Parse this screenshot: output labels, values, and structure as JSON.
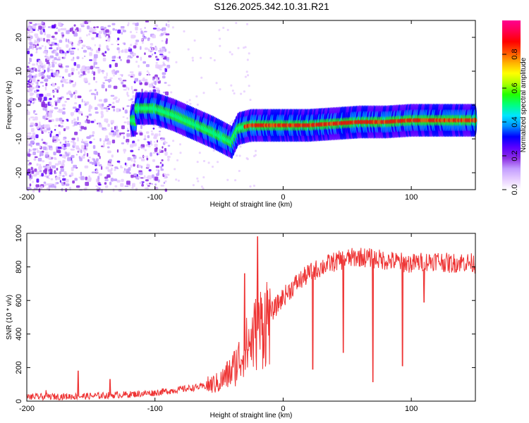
{
  "title": "S126.2025.342.10.31.R21",
  "chart_data": [
    {
      "type": "heatmap",
      "name": "spectrogram",
      "xlabel": "Height of straight line (km)",
      "ylabel": "Frequency (Hz)",
      "xlim": [
        -200,
        150
      ],
      "ylim": [
        -25,
        25
      ],
      "xticks": [
        -200,
        -100,
        0,
        100
      ],
      "yticks": [
        -20,
        -10,
        0,
        10,
        20
      ],
      "colorbar": {
        "label": "Normalized spectral amplitude",
        "ticks": [
          0.0,
          0.2,
          0.4,
          0.6,
          0.8
        ],
        "range": [
          0,
          1
        ],
        "colors": [
          "#ffffff",
          "#e6ccff",
          "#c29cff",
          "#8a2be2",
          "#5a00ff",
          "#0000ff",
          "#0090ff",
          "#00e5ff",
          "#00ff7f",
          "#22ff00",
          "#aaff00",
          "#ffff00",
          "#ffb000",
          "#ff5000",
          "#ff0000",
          "#ff0050",
          "#ff0090"
        ]
      },
      "ridge": [
        {
          "x": -115,
          "y": -1
        },
        {
          "x": -100,
          "y": -1
        },
        {
          "x": -85,
          "y": -3
        },
        {
          "x": -70,
          "y": -5.5
        },
        {
          "x": -55,
          "y": -8
        },
        {
          "x": -45,
          "y": -10
        },
        {
          "x": -40,
          "y": -11
        },
        {
          "x": -35,
          "y": -7
        },
        {
          "x": -25,
          "y": -6
        },
        {
          "x": -10,
          "y": -6
        },
        {
          "x": 0,
          "y": -6
        },
        {
          "x": 20,
          "y": -6
        },
        {
          "x": 40,
          "y": -5.5
        },
        {
          "x": 60,
          "y": -5
        },
        {
          "x": 80,
          "y": -5
        },
        {
          "x": 100,
          "y": -4.5
        },
        {
          "x": 120,
          "y": -4.5
        },
        {
          "x": 150,
          "y": -4.5
        }
      ]
    },
    {
      "type": "line",
      "name": "snr",
      "xlabel": "Height of straight line (km)",
      "ylabel": "SNR (10 * v/v)",
      "xlim": [
        -200,
        150
      ],
      "ylim": [
        0,
        1000
      ],
      "xticks": [
        -200,
        -100,
        0,
        100
      ],
      "yticks": [
        0,
        200,
        400,
        600,
        800,
        1000
      ],
      "color": "#ee3333",
      "series": [
        {
          "name": "SNR",
          "x": [
            -200,
            -150,
            -120,
            -100,
            -80,
            -60,
            -50,
            -40,
            -30,
            -20,
            -10,
            0,
            10,
            20,
            30,
            40,
            50,
            60,
            70,
            80,
            90,
            100,
            110,
            120,
            130,
            140,
            150
          ],
          "values": [
            25,
            30,
            40,
            50,
            70,
            90,
            110,
            180,
            300,
            420,
            520,
            620,
            700,
            760,
            800,
            830,
            850,
            860,
            850,
            840,
            830,
            820,
            830,
            840,
            820,
            830,
            820
          ]
        }
      ],
      "spikes": [
        {
          "x": -185,
          "y": 65
        },
        {
          "x": -160,
          "y": 180
        },
        {
          "x": -135,
          "y": 130
        },
        {
          "x": -20,
          "y": 980
        },
        {
          "x": -30,
          "y": 760
        }
      ],
      "dips": [
        {
          "x": 23,
          "y": 190
        },
        {
          "x": 47,
          "y": 290
        },
        {
          "x": 70,
          "y": 115
        },
        {
          "x": 93,
          "y": 210
        },
        {
          "x": 110,
          "y": 590
        }
      ]
    }
  ]
}
